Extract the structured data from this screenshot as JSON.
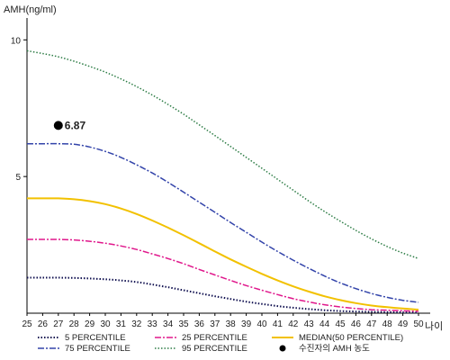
{
  "chart_data": {
    "type": "line",
    "title": "",
    "ylabel": "AMH(ng/ml)",
    "xlabel": "나이",
    "xlim": [
      25,
      50
    ],
    "ylim": [
      0,
      10.8
    ],
    "y_ticks": [
      5,
      10
    ],
    "x": [
      25,
      26,
      27,
      28,
      29,
      30,
      31,
      32,
      33,
      34,
      35,
      36,
      37,
      38,
      39,
      40,
      41,
      42,
      43,
      44,
      45,
      46,
      47,
      48,
      49,
      50
    ],
    "legend_position": "bottom",
    "series": [
      {
        "name": "5 PERCENTILE",
        "color": "#101050",
        "dash": "1.5,2",
        "width": 2,
        "values": [
          1.3,
          1.3,
          1.3,
          1.29,
          1.27,
          1.24,
          1.2,
          1.14,
          1.05,
          0.95,
          0.84,
          0.73,
          0.62,
          0.52,
          0.42,
          0.34,
          0.26,
          0.2,
          0.15,
          0.11,
          0.08,
          0.06,
          0.05,
          0.04,
          0.03,
          0.02
        ]
      },
      {
        "name": "25 PERCENTILE",
        "color": "#e0188c",
        "dash": "7,2,2,2",
        "width": 1.5,
        "values": [
          2.7,
          2.7,
          2.7,
          2.68,
          2.63,
          2.56,
          2.46,
          2.33,
          2.17,
          2.0,
          1.81,
          1.6,
          1.4,
          1.2,
          1.01,
          0.84,
          0.68,
          0.53,
          0.41,
          0.31,
          0.23,
          0.17,
          0.13,
          0.11,
          0.09,
          0.07
        ]
      },
      {
        "name": "MEDIAN(50 PERCENTILE)",
        "color": "#f2c100",
        "dash": "",
        "width": 2,
        "values": [
          4.2,
          4.2,
          4.2,
          4.17,
          4.1,
          3.99,
          3.83,
          3.63,
          3.39,
          3.13,
          2.85,
          2.56,
          2.26,
          1.97,
          1.7,
          1.44,
          1.2,
          0.98,
          0.79,
          0.62,
          0.48,
          0.37,
          0.28,
          0.22,
          0.17,
          0.13
        ]
      },
      {
        "name": "75 PERCENTILE",
        "color": "#3344aa",
        "dash": "7,2,2,2",
        "width": 1.5,
        "values": [
          6.2,
          6.2,
          6.2,
          6.18,
          6.08,
          5.92,
          5.7,
          5.43,
          5.13,
          4.79,
          4.43,
          4.06,
          3.69,
          3.32,
          2.96,
          2.6,
          2.26,
          1.94,
          1.64,
          1.36,
          1.11,
          0.9,
          0.72,
          0.58,
          0.47,
          0.4
        ]
      },
      {
        "name": "95 PERCENTILE",
        "color": "#2e7d46",
        "dash": "1.5,2",
        "width": 1.5,
        "values": [
          9.6,
          9.5,
          9.38,
          9.22,
          9.03,
          8.82,
          8.57,
          8.29,
          7.98,
          7.64,
          7.28,
          6.89,
          6.5,
          6.1,
          5.7,
          5.3,
          4.9,
          4.5,
          4.1,
          3.72,
          3.37,
          3.03,
          2.72,
          2.44,
          2.2,
          2.0
        ]
      }
    ],
    "patient_point": {
      "name": "수진자의 AMH 농도",
      "x": 27,
      "y": 6.87,
      "label": "6.87",
      "color": "#000000"
    }
  }
}
